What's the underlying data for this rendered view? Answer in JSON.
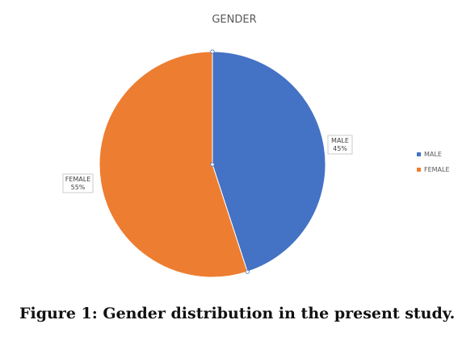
{
  "chart_data": {
    "type": "pie",
    "title": "GENDER",
    "categories": [
      "MALE",
      "FEMALE"
    ],
    "values": [
      45,
      55
    ],
    "unit": "%",
    "colors": [
      "#4472C4",
      "#ED7D31"
    ],
    "legend_position": "right",
    "data_labels": [
      {
        "name": "MALE",
        "value": "45%"
      },
      {
        "name": "FEMALE",
        "value": "55%"
      }
    ]
  },
  "caption": "Figure 1: Gender distribution in the present study."
}
